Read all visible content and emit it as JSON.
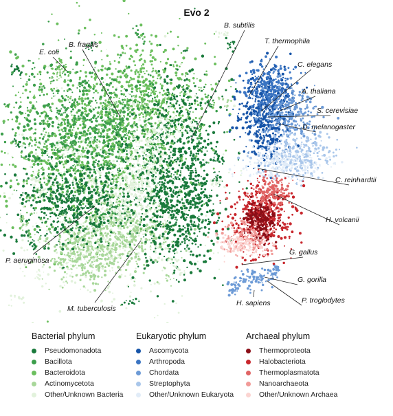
{
  "title": "Evo 2",
  "chart_data": {
    "type": "scatter",
    "title": "Evo 2",
    "annotations": [
      "E. coli",
      "B. fragilis",
      "B. subtilis",
      "P. aeruginosa",
      "M. tuberculosis",
      "T. thermophila",
      "C. elegans",
      "A. thaliana",
      "S. cerevisiae",
      "D. melanogaster",
      "C. reinhardtii",
      "H. volcanii",
      "G. gallus",
      "G. gorilla",
      "P. troglodytes",
      "H. sapiens"
    ],
    "groups": [
      {
        "name": "Bacterial phylum",
        "items": [
          {
            "label": "Pseudomonadota",
            "color": "#1a7a3c"
          },
          {
            "label": "Bacillota",
            "color": "#3c9e4c"
          },
          {
            "label": "Bacteroidota",
            "color": "#6cbf5e"
          },
          {
            "label": "Actinomycetota",
            "color": "#a8d79a"
          },
          {
            "label": "Other/Unknown Bacteria",
            "color": "#e2f2dc"
          }
        ]
      },
      {
        "name": "Eukaryotic phylum",
        "items": [
          {
            "label": "Ascomycota",
            "color": "#1654a8"
          },
          {
            "label": "Arthropoda",
            "color": "#3a74c2"
          },
          {
            "label": "Chordata",
            "color": "#6c9ad6"
          },
          {
            "label": "Streptophyta",
            "color": "#a9c6ea"
          },
          {
            "label": "Other/Unknown Eukaryota",
            "color": "#e1ecf8"
          }
        ]
      },
      {
        "name": "Archaeal phylum",
        "items": [
          {
            "label": "Thermoproteota",
            "color": "#8b0e17"
          },
          {
            "label": "Halobacteriota",
            "color": "#c8262c"
          },
          {
            "label": "Thermoplasmatota",
            "color": "#e06464"
          },
          {
            "label": "Nanoarchaeota",
            "color": "#f19a97"
          },
          {
            "label": "Other/Unknown Archaea",
            "color": "#fbd4d1"
          }
        ]
      }
    ]
  }
}
